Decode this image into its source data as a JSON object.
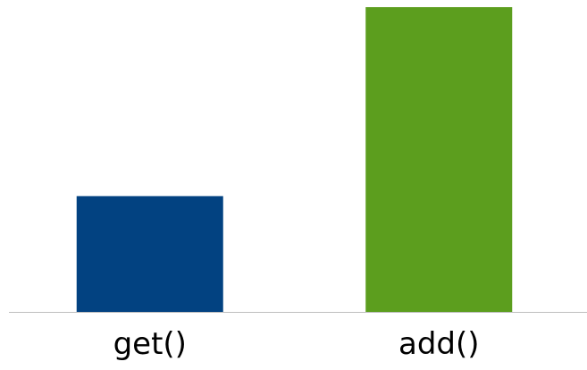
{
  "chart_data": {
    "type": "bar",
    "title": "",
    "xlabel": "",
    "ylabel": "",
    "categories": [
      "get()",
      "add()"
    ],
    "values": [
      38,
      100
    ],
    "ylim": [
      0,
      100
    ],
    "grid": false,
    "legend": "none",
    "colors": [
      "#024281",
      "#5c9e1e"
    ],
    "axis_color": "#bfbfbf",
    "label_color": "#000000"
  }
}
